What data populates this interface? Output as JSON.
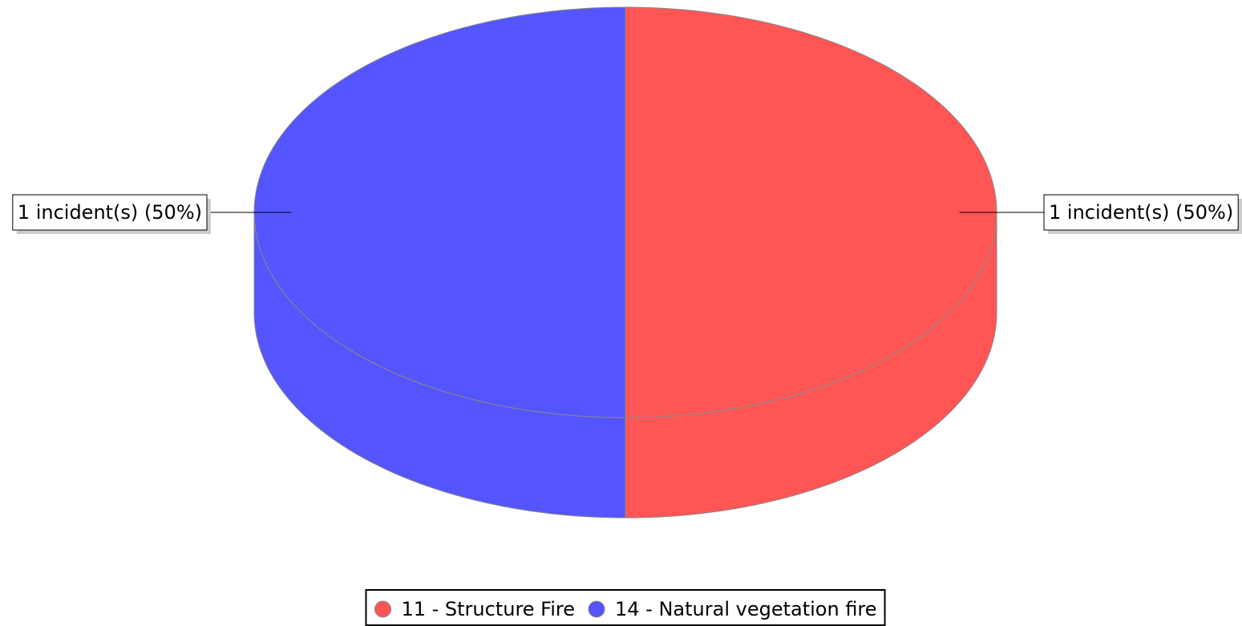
{
  "chart_data": {
    "type": "pie3d",
    "categories": [
      "11 - Structure Fire",
      "14 - Natural vegetation fire"
    ],
    "values": [
      1,
      1
    ],
    "value_labels": [
      "1 incident(s) (50%)",
      "1 incident(s) (50%)"
    ],
    "colors": [
      "#ff5555",
      "#5555ff"
    ],
    "legend": "bottom"
  }
}
